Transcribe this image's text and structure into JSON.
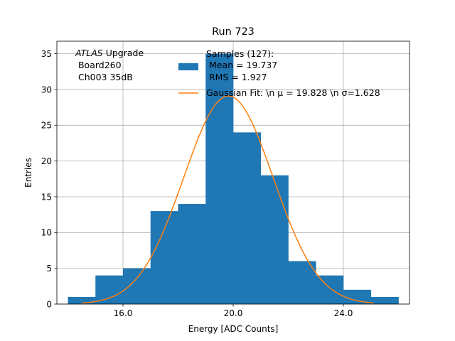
{
  "chart_data": {
    "type": "bar",
    "title": "Run 723",
    "xlabel": "Energy [ADC Counts]",
    "ylabel": "Entries",
    "xlim": [
      13.6,
      26.4
    ],
    "ylim": [
      0,
      36.75
    ],
    "grid": true,
    "x_ticks": [
      16.0,
      20.0,
      24.0
    ],
    "x_tick_labels": [
      "16.0",
      "20.0",
      "24.0"
    ],
    "y_ticks": [
      0,
      5,
      10,
      15,
      20,
      25,
      30,
      35
    ],
    "y_tick_labels": [
      "0",
      "5",
      "10",
      "15",
      "20",
      "25",
      "30",
      "35"
    ],
    "histogram": {
      "bin_edges": [
        14,
        15,
        16,
        17,
        18,
        19,
        20,
        21,
        22,
        23,
        24,
        25,
        26
      ],
      "counts": [
        1,
        4,
        5,
        13,
        14,
        35,
        24,
        18,
        6,
        4,
        2,
        1
      ],
      "color": "#1f77b4"
    },
    "gaussian_fit": {
      "mu": 19.828,
      "sigma": 1.628,
      "amplitude": 29.1,
      "x_range": [
        14.5,
        25.1
      ],
      "color": "#ff7f0e"
    },
    "annotation_lines": [
      "ATLAS Upgrade",
      " Board260",
      " Ch003 35dB"
    ],
    "legend": {
      "placement": "top-right",
      "entries": [
        {
          "kind": "bar",
          "lines": [
            "Samples (127):",
            " Mean = 19.737",
            " RMS = 1.927"
          ],
          "color": "#1f77b4"
        },
        {
          "kind": "line",
          "lines": [
            "Gaussian Fit: \\n μ = 19.828 \\n σ=1.628"
          ],
          "color": "#ff7f0e"
        }
      ]
    }
  }
}
